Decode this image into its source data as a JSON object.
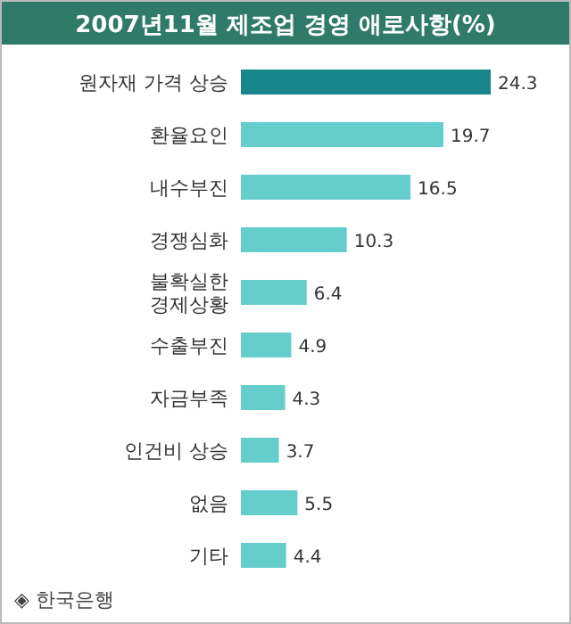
{
  "chart_data": {
    "type": "bar",
    "orientation": "horizontal",
    "title": "2007년11월 제조업 경영 애로사항(%)",
    "categories": [
      "원자재 가격 상승",
      "환율요인",
      "내수부진",
      "경쟁심화",
      "불확실한 경제상황",
      "수출부진",
      "자금부족",
      "인건비 상승",
      "없음",
      "기타"
    ],
    "values": [
      24.3,
      19.7,
      16.5,
      10.3,
      6.4,
      4.9,
      4.3,
      3.7,
      5.5,
      4.4
    ],
    "colors": [
      "#17858a",
      "#66cdcd",
      "#66cdcd",
      "#66cdcd",
      "#66cdcd",
      "#66cdcd",
      "#66cdcd",
      "#66cdcd",
      "#66cdcd",
      "#66cdcd"
    ],
    "data_labels": true,
    "annotations": [
      "◈ 한국은행"
    ]
  }
}
